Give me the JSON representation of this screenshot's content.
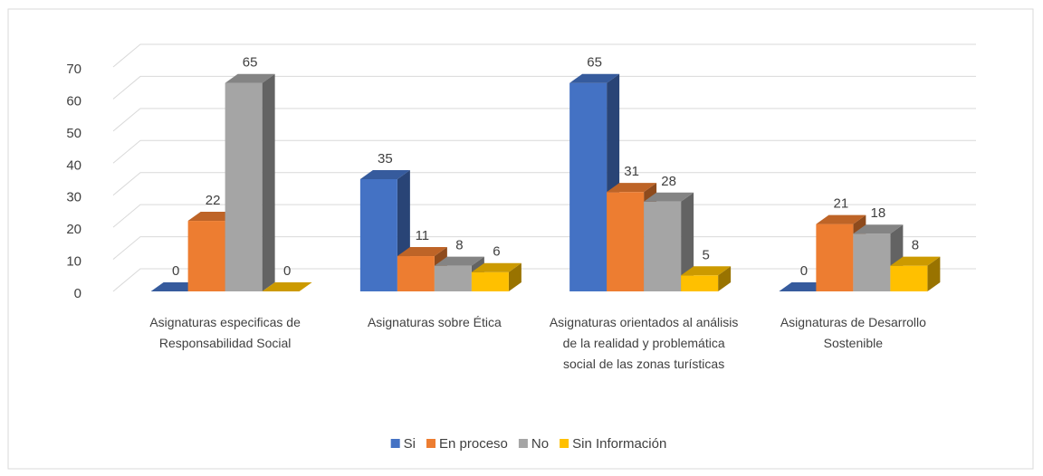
{
  "chart_data": {
    "type": "bar3d",
    "categories": [
      "Asignaturas especificas de Responsabilidad Social",
      "Asignaturas sobre Ética",
      "Asignaturas  orientados al análisis de la realidad y problemática social de las zonas turísticas",
      "Asignaturas de Desarrollo Sostenible"
    ],
    "series": [
      {
        "name": "Si",
        "color": "#4472c4",
        "values": [
          0,
          35,
          65,
          0
        ]
      },
      {
        "name": "En proceso",
        "color": "#ed7d31",
        "values": [
          22,
          11,
          31,
          21
        ]
      },
      {
        "name": "No",
        "color": "#a5a5a5",
        "values": [
          65,
          8,
          28,
          18
        ]
      },
      {
        "name": "Sin Información",
        "color": "#ffc000",
        "values": [
          0,
          6,
          5,
          8
        ]
      }
    ],
    "ylim": [
      0,
      70
    ],
    "yticks": [
      0,
      10,
      20,
      30,
      40,
      50,
      60,
      70
    ],
    "grid": true,
    "legend": "bottom",
    "data_labels": true
  }
}
